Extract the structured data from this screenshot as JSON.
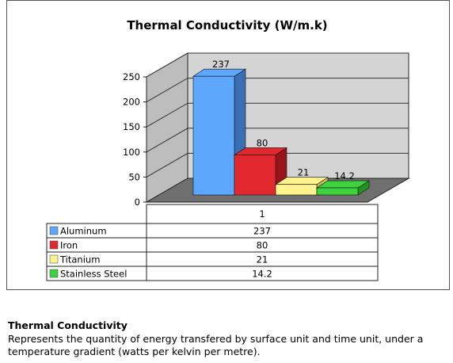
{
  "chart_data": {
    "type": "bar",
    "title": "Thermal Conductivity (W/m.k)",
    "categories": [
      "1"
    ],
    "series": [
      {
        "name": "Aluminum",
        "values": [
          237
        ],
        "label": "237",
        "color": "#5ea7ff",
        "dark": "#3a6fb3"
      },
      {
        "name": "Iron",
        "values": [
          80
        ],
        "label": "80",
        "color": "#e0282e",
        "dark": "#96141a"
      },
      {
        "name": "Titanium",
        "values": [
          21
        ],
        "label": "21",
        "color": "#fff38f",
        "dark": "#c8bc5a"
      },
      {
        "name": "Stainless Steel",
        "values": [
          14.2
        ],
        "label": "14.2",
        "color": "#3fd23f",
        "dark": "#209420"
      }
    ],
    "ylim": [
      0,
      250
    ],
    "yticks": [
      0,
      50,
      100,
      150,
      200,
      250
    ],
    "grid": true,
    "legend": "table-below"
  },
  "caption": {
    "title": "Thermal Conductivity",
    "text": "Represents the quantity of energy transfered by surface unit and time unit, under a temperature gradient (watts per kelvin per metre)."
  }
}
